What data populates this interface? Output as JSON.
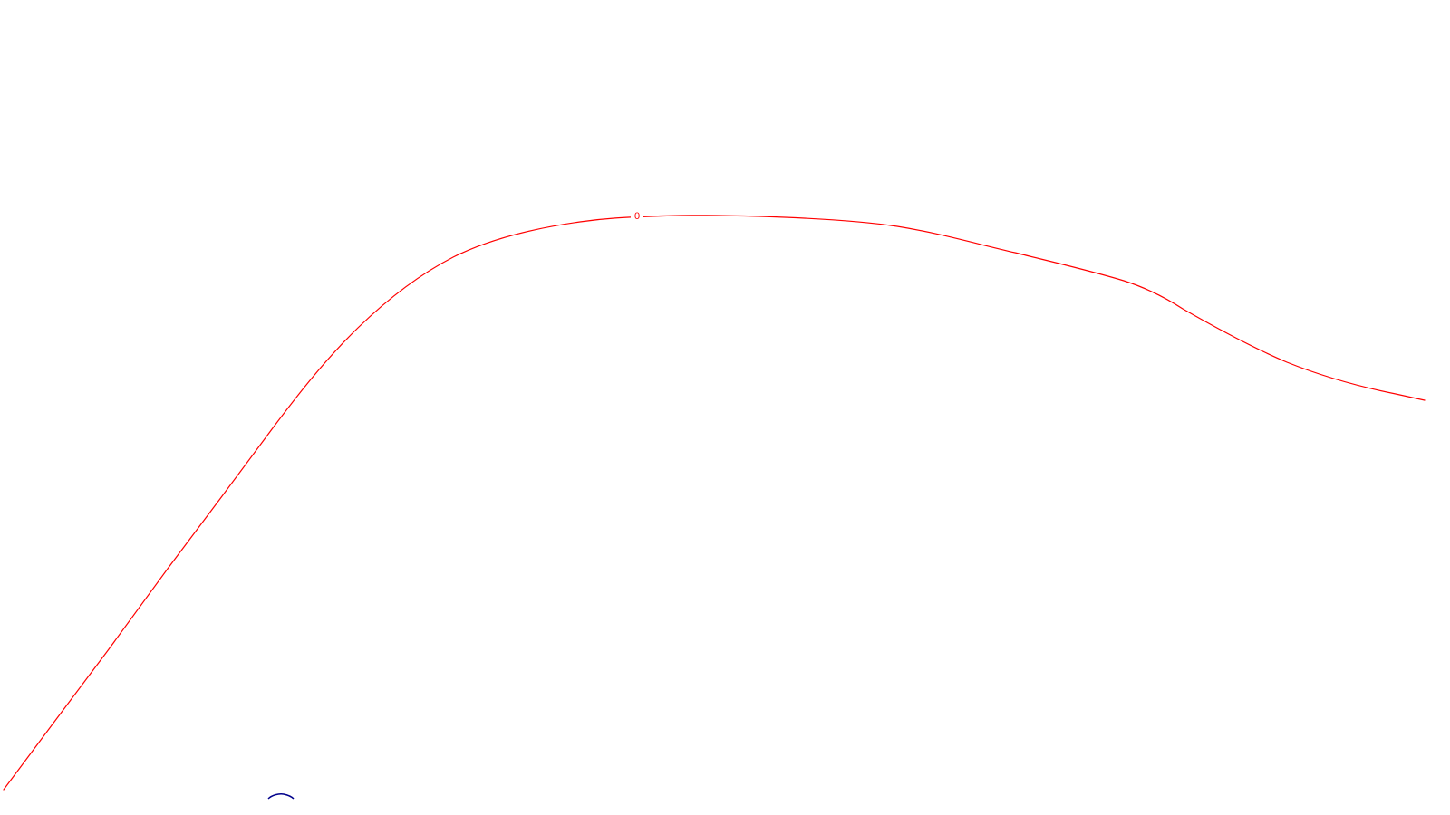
{
  "map": {
    "background": "#ffffff",
    "contours": [
      {
        "label": "0",
        "color": "#ff0000"
      }
    ],
    "secondary_feature": {
      "color": "#00008b"
    }
  }
}
